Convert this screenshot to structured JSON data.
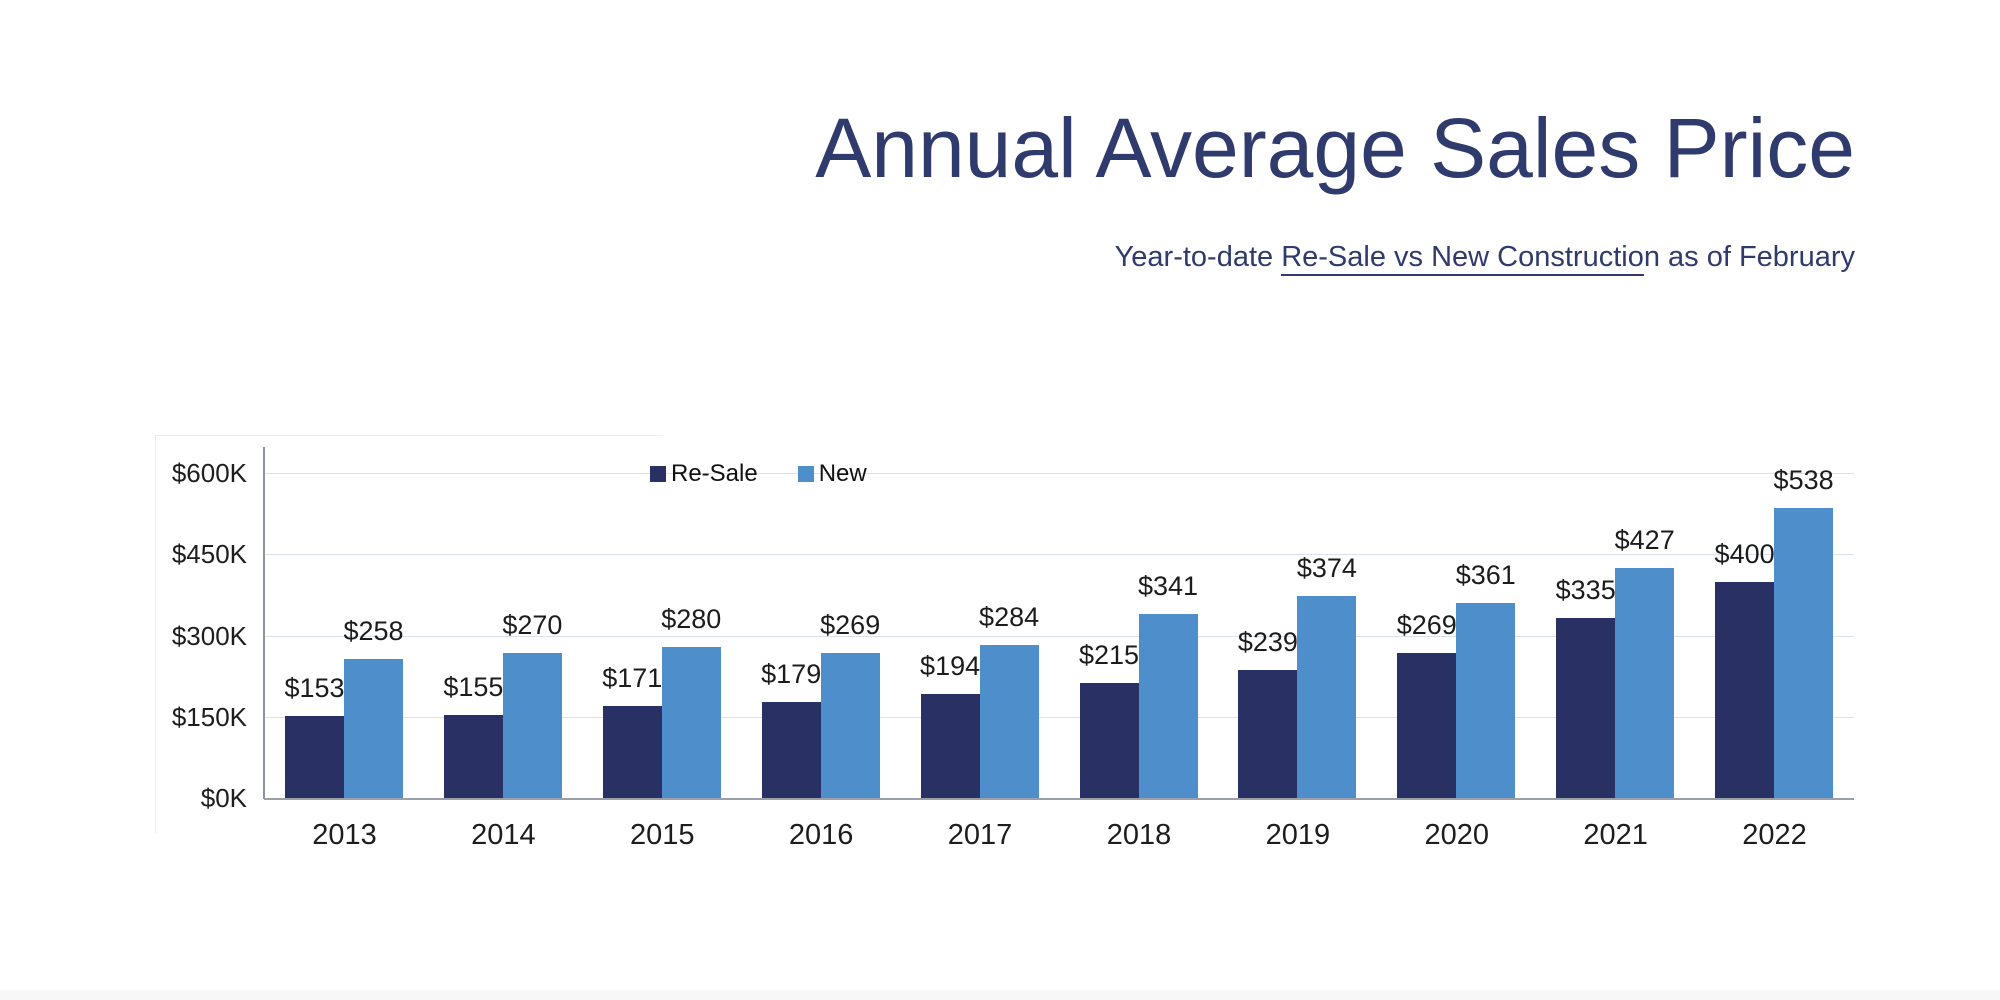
{
  "header": {
    "title": "Annual Average Sales Price",
    "subtitle_prefix": "Year-to-date ",
    "subtitle_underlined": "Re-Sale vs New Constructio",
    "subtitle_suffix": "n as of February",
    "title_color": "#2f3a6d"
  },
  "chart_data": {
    "type": "bar",
    "title": "Annual Average Sales Price",
    "subtitle": "Year-to-date Re-Sale vs New Construction as of February",
    "categories": [
      "2013",
      "2014",
      "2015",
      "2016",
      "2017",
      "2018",
      "2019",
      "2020",
      "2021",
      "2022"
    ],
    "series": [
      {
        "name": "Re-Sale",
        "color": "#283064",
        "values": [
          153,
          155,
          171,
          179,
          194,
          215,
          239,
          269,
          335,
          400
        ],
        "labels": [
          "$153",
          "$155",
          "$171",
          "$179",
          "$194",
          "$215",
          "$239",
          "$269",
          "$335",
          "$400"
        ]
      },
      {
        "name": "New",
        "color": "#4e8fcb",
        "values": [
          258,
          270,
          280,
          269,
          284,
          341,
          374,
          361,
          427,
          538
        ],
        "labels": [
          "$258",
          "$270",
          "$280",
          "$269",
          "$284",
          "$341",
          "$374",
          "$361",
          "$427",
          "$538"
        ]
      }
    ],
    "xlabel": "",
    "ylabel": "",
    "ylim": [
      0,
      600
    ],
    "yticks": [
      0,
      150,
      300,
      450,
      600
    ],
    "ytick_labels": [
      "$0K",
      "$150K",
      "$300K",
      "$450K",
      "$600K"
    ],
    "grid": true,
    "legend_position": "top-inside",
    "colors": {
      "grid": "#dbe2ef",
      "axis": "#8f949c",
      "baseline": "#9aa0a8",
      "label_text": "#1c1c1c"
    }
  }
}
